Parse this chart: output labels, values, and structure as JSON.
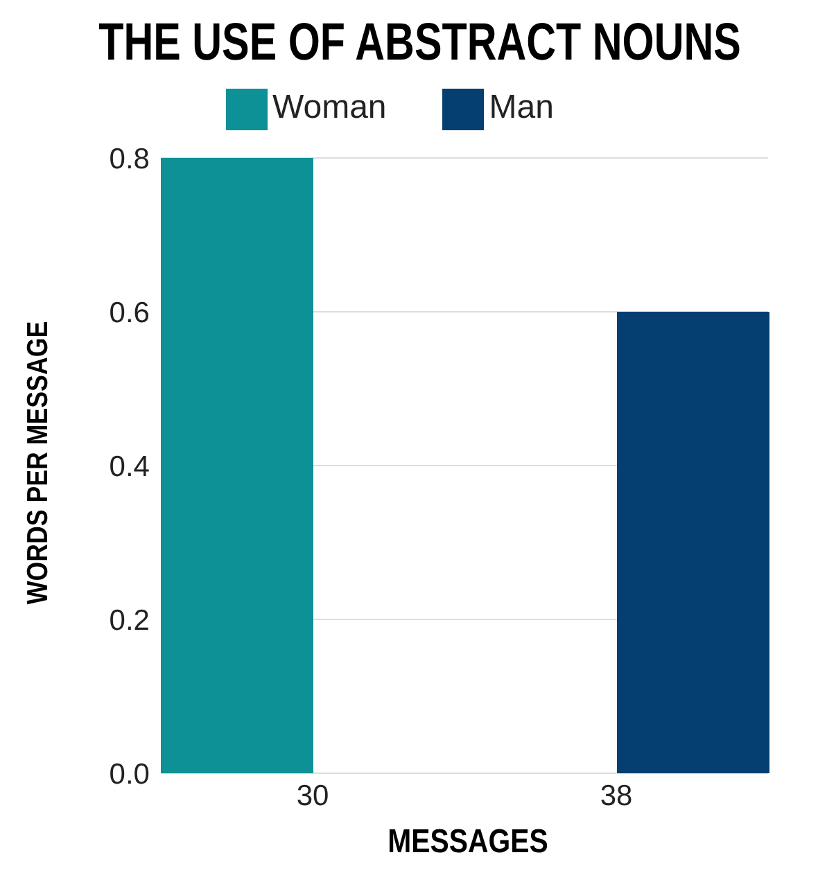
{
  "chart_data": {
    "type": "bar",
    "title": "THE USE OF ABSTRACT NOUNS",
    "xlabel": "MESSAGES",
    "ylabel": "WORDS PER MESSAGE",
    "categories": [
      "30",
      "38"
    ],
    "series": [
      {
        "name": "Woman",
        "color": "#0e9196",
        "values": [
          0.8,
          null
        ]
      },
      {
        "name": "Man",
        "color": "#053f71",
        "values": [
          null,
          0.6
        ]
      }
    ],
    "ylim": [
      0,
      0.8
    ],
    "yticks": [
      {
        "value": 0,
        "label": "0.0"
      },
      {
        "value": 0.2,
        "label": "0.2"
      },
      {
        "value": 0.4,
        "label": "0.4"
      },
      {
        "value": 0.6,
        "label": "0.6"
      },
      {
        "value": 0.8,
        "label": "0.8"
      }
    ],
    "grid": "y",
    "legend": "top"
  }
}
